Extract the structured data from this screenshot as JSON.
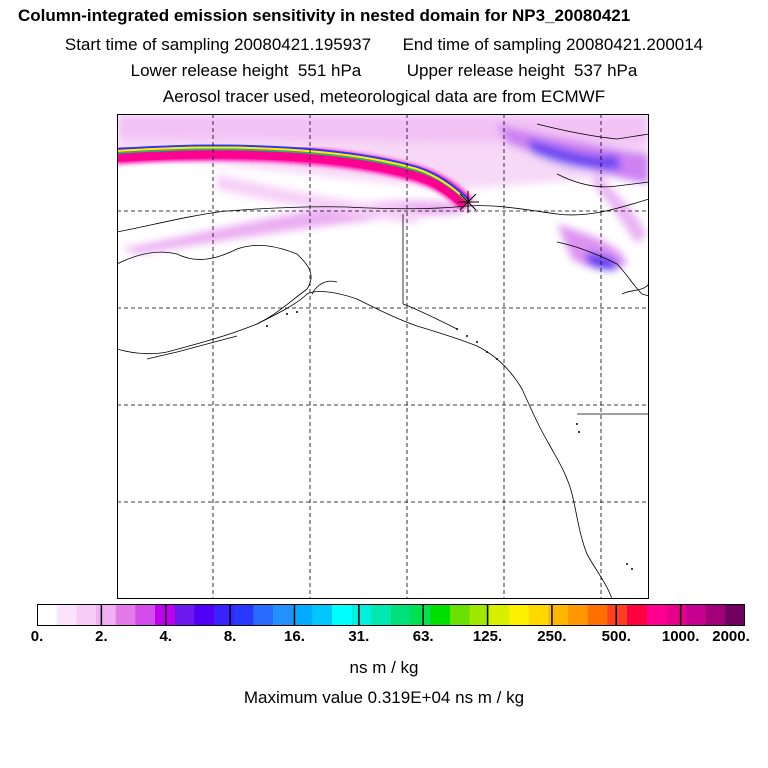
{
  "header": {
    "title": "Column-integrated emission sensitivity in nested domain for NP3_20080421",
    "start_label": "Start time of sampling",
    "start_value": "20080421.195937",
    "end_label": "End time of sampling",
    "end_value": "20080421.200014",
    "lower_label": "Lower release height",
    "lower_value": "551 hPa",
    "upper_label": "Upper release height",
    "upper_value": "537 hPa",
    "info": "Aerosol tracer used, meteorological data are from ECMWF"
  },
  "colorbar": {
    "labels": [
      "0.",
      "2.",
      "4.",
      "8.",
      "16.",
      "31.",
      "63.",
      "125.",
      "250.",
      "500.",
      "1000.",
      "2000."
    ],
    "colors": [
      "#ffffff",
      "#fbe4fb",
      "#f7cdf7",
      "#f2b0f2",
      "#e27ae9",
      "#d44cea",
      "#bf00ee",
      "#6d1aee",
      "#5000f4",
      "#3a22ff",
      "#2a38ff",
      "#2a6bff",
      "#2290ff",
      "#00aaff",
      "#00c8ff",
      "#00ffff",
      "#00f0e0",
      "#00e8b0",
      "#00e07a",
      "#00e050",
      "#00e000",
      "#6ae000",
      "#a0e800",
      "#d8f000",
      "#fff000",
      "#ffd800",
      "#ffb800",
      "#ff9800",
      "#ff7000",
      "#ff4020",
      "#ff0040",
      "#ff0090",
      "#e8008c",
      "#c80090",
      "#a0007a",
      "#700060"
    ],
    "units": "ns m / kg",
    "max_label": "Maximum value",
    "max_value": "0.319E+04",
    "max_units": "ns m / kg"
  },
  "map": {
    "release_marker": "asterisk-marker",
    "plume_colors": [
      "#ff00aa",
      "#ffee00",
      "#00e070",
      "#1a40ff",
      "#ff00aa"
    ]
  }
}
